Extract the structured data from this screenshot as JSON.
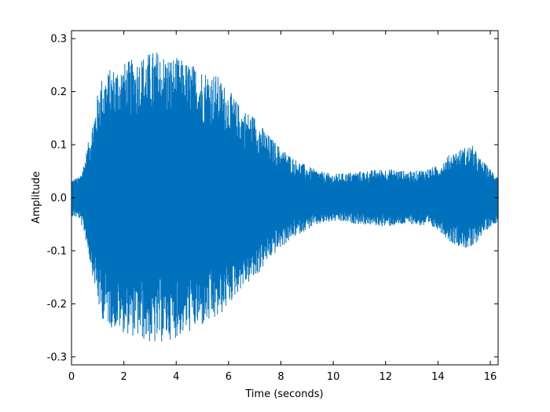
{
  "chart_data": {
    "type": "line",
    "title": "",
    "xlabel": "Time (seconds)",
    "ylabel": "Amplitude",
    "xlim": [
      0,
      16.3
    ],
    "ylim": [
      -0.315,
      0.315
    ],
    "xticks": [
      0,
      2,
      4,
      6,
      8,
      10,
      12,
      14,
      16
    ],
    "xtick_labels": [
      "0",
      "2",
      "4",
      "6",
      "8",
      "10",
      "12",
      "14",
      "16"
    ],
    "yticks": [
      0.3,
      0.2,
      0.1,
      0.0,
      -0.1,
      -0.2,
      -0.3
    ],
    "ytick_labels": [
      "0.3",
      "0.2",
      "0.1",
      "0.0",
      "-0.1",
      "-0.2",
      "-0.3"
    ],
    "grid": false,
    "legend": "none",
    "line_color": "#0072BD",
    "series": [
      {
        "envelope_time_s": [
          0,
          0.3,
          0.5,
          0.7,
          0.9,
          1.1,
          1.5,
          2.0,
          2.5,
          3.0,
          3.2,
          3.6,
          4.0,
          4.5,
          5.0,
          5.5,
          6.0,
          6.5,
          7.0,
          7.5,
          8.0,
          8.5,
          9.0,
          9.5,
          10.0,
          11.0,
          12.0,
          13.0,
          14.0,
          14.5,
          15.0,
          15.3,
          15.6,
          16.0,
          16.3
        ],
        "envelope_amplitude": [
          0.035,
          0.04,
          0.07,
          0.12,
          0.17,
          0.225,
          0.245,
          0.255,
          0.265,
          0.275,
          0.28,
          0.27,
          0.265,
          0.255,
          0.245,
          0.235,
          0.205,
          0.17,
          0.155,
          0.12,
          0.095,
          0.075,
          0.06,
          0.05,
          0.045,
          0.05,
          0.055,
          0.05,
          0.06,
          0.085,
          0.095,
          0.1,
          0.075,
          0.055,
          0.045
        ]
      }
    ]
  }
}
